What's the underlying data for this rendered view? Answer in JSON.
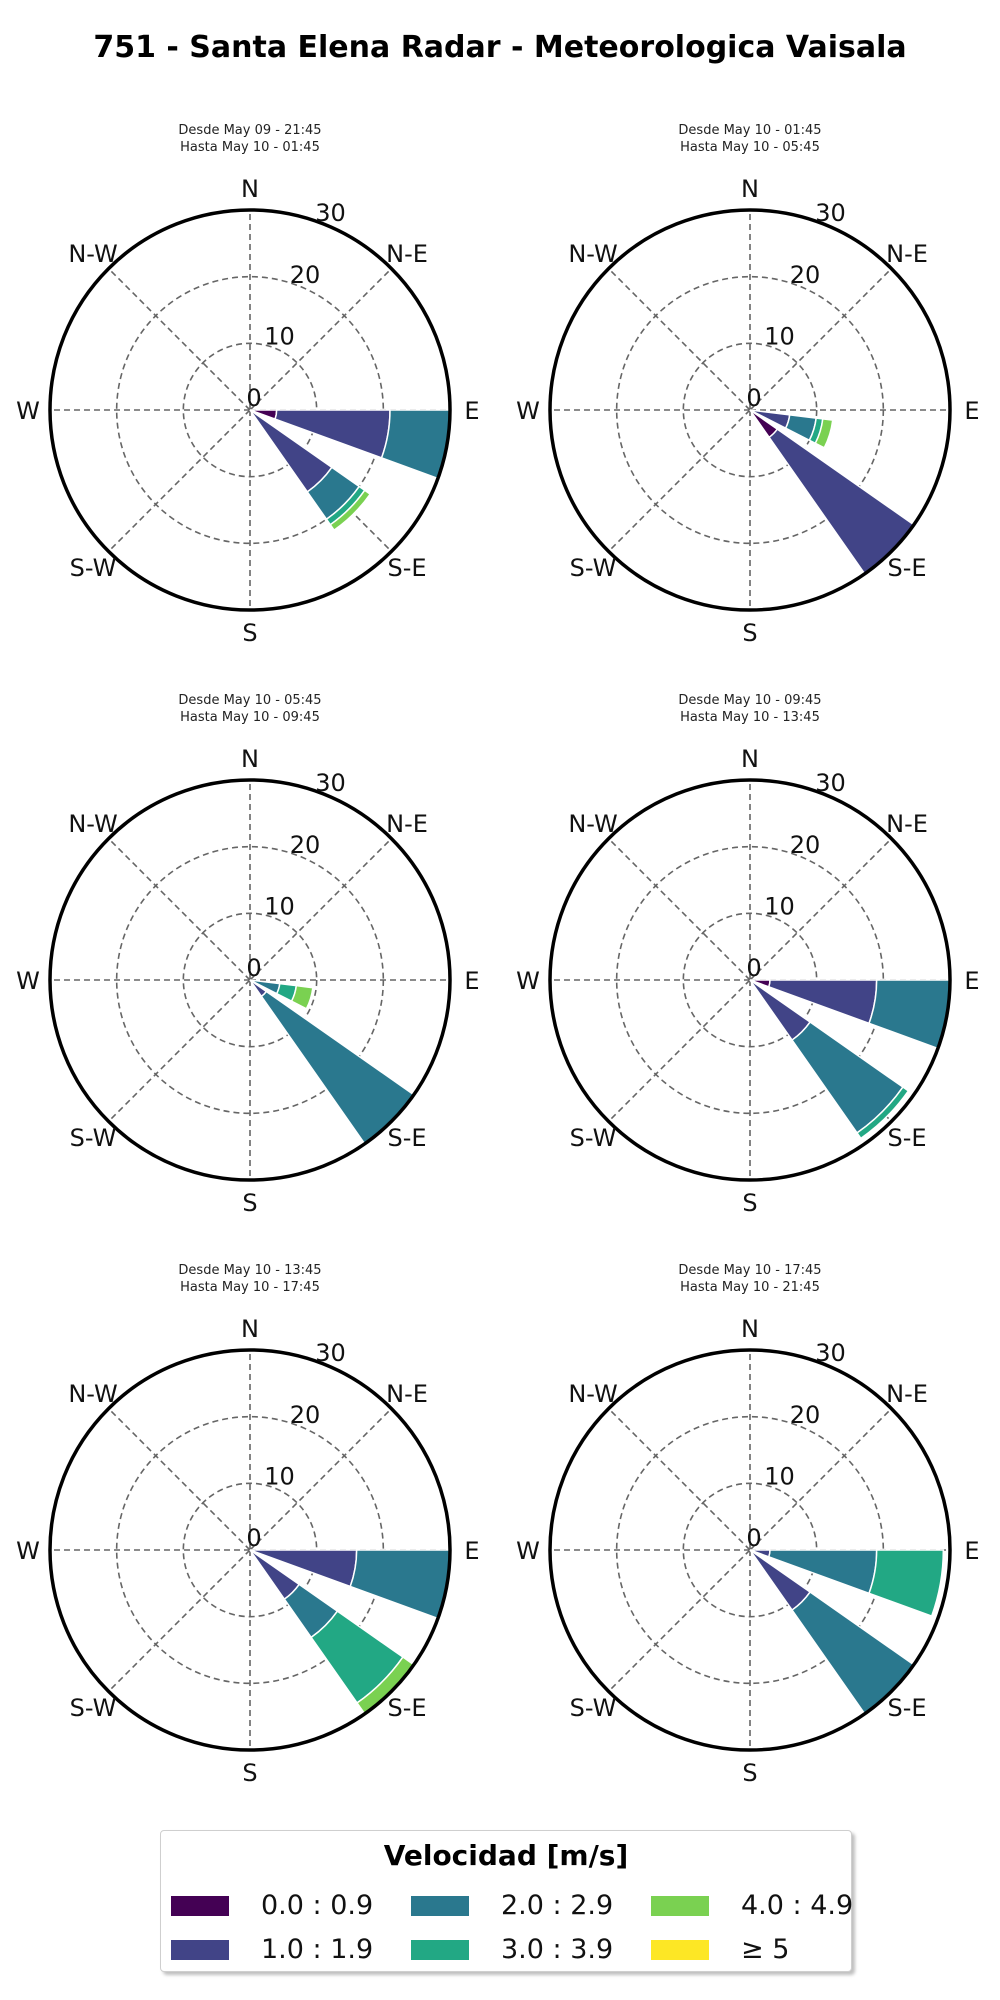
{
  "title": "751 - Santa Elena Radar - Meteorologica Vaisala",
  "compass_labels": [
    "N",
    "N-E",
    "E",
    "S-E",
    "S",
    "S-W",
    "W",
    "N-W"
  ],
  "radial_ticks": [
    "0",
    "10",
    "20",
    "30"
  ],
  "legend": {
    "title": "Velocidad [m/s]",
    "bins": [
      {
        "label": "0.0 : 0.9",
        "color": "#440154"
      },
      {
        "label": "1.0 : 1.9",
        "color": "#414487"
      },
      {
        "label": "2.0 : 2.9",
        "color": "#2a788e"
      },
      {
        "label": "3.0 : 3.9",
        "color": "#22a884"
      },
      {
        "label": "4.0 : 4.9",
        "color": "#7ad151"
      },
      {
        "label": "≥  5",
        "color": "#fde725"
      }
    ]
  },
  "panels": [
    {
      "line1": "Desde May 09 - 21:45",
      "line2": "Hasta May 10 - 01:45"
    },
    {
      "line1": "Desde May 10 - 01:45",
      "line2": "Hasta May 10 - 05:45"
    },
    {
      "line1": "Desde May 10 - 05:45",
      "line2": "Hasta May 10 - 09:45"
    },
    {
      "line1": "Desde May 10 - 09:45",
      "line2": "Hasta May 10 - 13:45"
    },
    {
      "line1": "Desde May 10 - 13:45",
      "line2": "Hasta May 10 - 17:45"
    },
    {
      "line1": "Desde May 10 - 17:45",
      "line2": "Hasta May 10 - 21:45"
    }
  ],
  "chart_data": [
    {
      "type": "windrose",
      "rmax": 30,
      "radial_ticks": [
        0,
        10,
        20,
        30
      ],
      "directions": [
        {
          "deg": 100,
          "stack": [
            4,
            21,
            30,
            30,
            30,
            30
          ]
        },
        {
          "deg": 120,
          "stack": [
            0,
            0,
            0,
            0,
            0,
            0
          ]
        },
        {
          "deg": 135,
          "stack": [
            0,
            15,
            20,
            21,
            22,
            22
          ]
        }
      ]
    },
    {
      "type": "windrose",
      "rmax": 30,
      "radial_ticks": [
        0,
        10,
        20,
        30
      ],
      "directions": [
        {
          "deg": 107,
          "stack": [
            0,
            6,
            10,
            11,
            12.5,
            12.5
          ]
        },
        {
          "deg": 135,
          "stack": [
            5,
            30,
            30,
            30,
            30,
            30
          ]
        }
      ]
    },
    {
      "type": "windrose",
      "rmax": 30,
      "radial_ticks": [
        0,
        10,
        20,
        30
      ],
      "directions": [
        {
          "deg": 107,
          "stack": [
            0,
            0,
            4.5,
            7,
            9.5,
            9.5
          ]
        },
        {
          "deg": 135,
          "stack": [
            0,
            3,
            30,
            30,
            30,
            30
          ]
        }
      ]
    },
    {
      "type": "windrose",
      "rmax": 30,
      "radial_ticks": [
        0,
        10,
        20,
        30
      ],
      "directions": [
        {
          "deg": 100,
          "stack": [
            3,
            19,
            30,
            30,
            30,
            30
          ]
        },
        {
          "deg": 120,
          "stack": [
            0,
            0,
            0,
            0,
            0,
            0
          ]
        },
        {
          "deg": 135,
          "stack": [
            0,
            11,
            28,
            29,
            29,
            29
          ]
        }
      ]
    },
    {
      "type": "windrose",
      "rmax": 30,
      "radial_ticks": [
        0,
        10,
        20,
        30
      ],
      "directions": [
        {
          "deg": 100,
          "stack": [
            0,
            16,
            30,
            30,
            30,
            30
          ]
        },
        {
          "deg": 120,
          "stack": [
            0,
            0,
            0,
            0,
            0,
            0
          ]
        },
        {
          "deg": 135,
          "stack": [
            0,
            9,
            16,
            28,
            30,
            30
          ]
        }
      ]
    },
    {
      "type": "windrose",
      "rmax": 30,
      "radial_ticks": [
        0,
        10,
        20,
        30
      ],
      "directions": [
        {
          "deg": 100,
          "stack": [
            0,
            3,
            19,
            29,
            29,
            29
          ]
        },
        {
          "deg": 120,
          "stack": [
            0,
            0,
            0,
            0,
            0,
            0
          ]
        },
        {
          "deg": 135,
          "stack": [
            0,
            11,
            30,
            30,
            30,
            30
          ]
        }
      ]
    }
  ]
}
